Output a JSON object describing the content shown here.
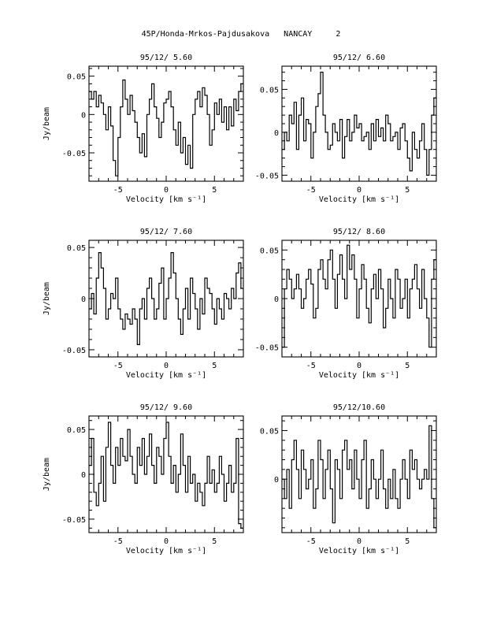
{
  "page_title": "45P/Honda-Mrkos-Pajdusakova   NANCAY     2",
  "chart_data": [
    {
      "type": "line",
      "title": "95/12/ 5.60",
      "xlabel": "Velocity [km s⁻¹]",
      "ylabel": "Jy/beam",
      "xlim": [
        -8,
        8
      ],
      "ylim": [
        -0.087,
        0.063
      ],
      "xticks": [
        -5,
        0,
        5
      ],
      "yticks": [
        0.05,
        0,
        -0.05
      ],
      "ytick_labels": [
        "0.05",
        "0",
        "-0.05"
      ],
      "x": [
        -8.0,
        -7.75,
        -7.5,
        -7.25,
        -7.0,
        -6.75,
        -6.5,
        -6.25,
        -6.0,
        -5.75,
        -5.5,
        -5.25,
        -5.0,
        -4.75,
        -4.5,
        -4.25,
        -4.0,
        -3.75,
        -3.5,
        -3.25,
        -3.0,
        -2.75,
        -2.5,
        -2.25,
        -2.0,
        -1.75,
        -1.5,
        -1.25,
        -1.0,
        -0.75,
        -0.5,
        -0.25,
        0.0,
        0.25,
        0.5,
        0.75,
        1.0,
        1.25,
        1.5,
        1.75,
        2.0,
        2.25,
        2.5,
        2.75,
        3.0,
        3.25,
        3.5,
        3.75,
        4.0,
        4.25,
        4.5,
        4.75,
        5.0,
        5.25,
        5.5,
        5.75,
        6.0,
        6.25,
        6.5,
        6.75,
        7.0,
        7.25,
        7.5,
        7.75
      ],
      "y": [
        0.03,
        0.02,
        0.03,
        0.01,
        0.025,
        0.015,
        0.0,
        -0.02,
        0.01,
        -0.015,
        -0.06,
        -0.08,
        -0.03,
        0.01,
        0.045,
        0.02,
        0.0,
        0.025,
        0.005,
        -0.01,
        -0.03,
        -0.05,
        -0.025,
        -0.055,
        0.0,
        0.02,
        0.04,
        0.01,
        -0.005,
        -0.03,
        -0.01,
        0.015,
        0.02,
        0.03,
        0.01,
        -0.02,
        -0.04,
        -0.01,
        -0.05,
        -0.03,
        -0.065,
        -0.04,
        -0.07,
        0.0,
        0.02,
        0.03,
        0.01,
        0.035,
        0.025,
        0.0,
        -0.04,
        -0.02,
        0.015,
        0.0,
        0.02,
        -0.01,
        0.01,
        -0.02,
        0.01,
        -0.015,
        0.02,
        0.005,
        0.03,
        0.04
      ]
    },
    {
      "type": "line",
      "title": "95/12/ 6.60",
      "xlabel": "Velocity [km s⁻¹]",
      "ylabel": "",
      "xlim": [
        -8,
        8
      ],
      "ylim": [
        -0.057,
        0.077
      ],
      "xticks": [
        -5,
        0,
        5
      ],
      "yticks": [
        0.05,
        0,
        -0.05
      ],
      "ytick_labels": [
        "0.05",
        "0",
        "-0.05"
      ],
      "x": [
        -8.0,
        -7.75,
        -7.5,
        -7.25,
        -7.0,
        -6.75,
        -6.5,
        -6.25,
        -6.0,
        -5.75,
        -5.5,
        -5.25,
        -5.0,
        -4.75,
        -4.5,
        -4.25,
        -4.0,
        -3.75,
        -3.5,
        -3.25,
        -3.0,
        -2.75,
        -2.5,
        -2.25,
        -2.0,
        -1.75,
        -1.5,
        -1.25,
        -1.0,
        -0.75,
        -0.5,
        -0.25,
        0.0,
        0.25,
        0.5,
        0.75,
        1.0,
        1.25,
        1.5,
        1.75,
        2.0,
        2.25,
        2.5,
        2.75,
        3.0,
        3.25,
        3.5,
        3.75,
        4.0,
        4.25,
        4.5,
        4.75,
        5.0,
        5.25,
        5.5,
        5.75,
        6.0,
        6.25,
        6.5,
        6.75,
        7.0,
        7.25,
        7.5,
        7.75
      ],
      "y": [
        -0.02,
        0.0,
        -0.01,
        0.02,
        0.01,
        0.035,
        -0.02,
        0.02,
        0.04,
        -0.01,
        0.015,
        0.01,
        -0.03,
        0.0,
        0.03,
        0.045,
        0.07,
        0.02,
        0.0,
        -0.02,
        -0.015,
        0.01,
        0.0,
        -0.01,
        0.015,
        -0.03,
        -0.005,
        0.015,
        -0.01,
        0.0,
        0.02,
        0.005,
        0.01,
        -0.01,
        -0.005,
        0.0,
        -0.02,
        0.01,
        -0.01,
        0.015,
        -0.005,
        0.005,
        -0.01,
        0.02,
        0.01,
        -0.01,
        -0.005,
        0.0,
        -0.02,
        0.005,
        0.01,
        -0.01,
        -0.03,
        -0.045,
        0.0,
        -0.02,
        -0.03,
        -0.01,
        0.01,
        -0.02,
        -0.05,
        -0.02,
        0.02,
        0.04
      ]
    },
    {
      "type": "line",
      "title": "95/12/ 7.60",
      "xlabel": "Velocity [km s⁻¹]",
      "ylabel": "Jy/beam",
      "xlim": [
        -8,
        8
      ],
      "ylim": [
        -0.057,
        0.057
      ],
      "xticks": [
        -5,
        0,
        5
      ],
      "yticks": [
        0.05,
        0,
        -0.05
      ],
      "ytick_labels": [
        "0.05",
        "0",
        "-0.05"
      ],
      "x": [
        -8.0,
        -7.75,
        -7.5,
        -7.25,
        -7.0,
        -6.75,
        -6.5,
        -6.25,
        -6.0,
        -5.75,
        -5.5,
        -5.25,
        -5.0,
        -4.75,
        -4.5,
        -4.25,
        -4.0,
        -3.75,
        -3.5,
        -3.25,
        -3.0,
        -2.75,
        -2.5,
        -2.25,
        -2.0,
        -1.75,
        -1.5,
        -1.25,
        -1.0,
        -0.75,
        -0.5,
        -0.25,
        0.0,
        0.25,
        0.5,
        0.75,
        1.0,
        1.25,
        1.5,
        1.75,
        2.0,
        2.25,
        2.5,
        2.75,
        3.0,
        3.25,
        3.5,
        3.75,
        4.0,
        4.25,
        4.5,
        4.75,
        5.0,
        5.25,
        5.5,
        5.75,
        6.0,
        6.25,
        6.5,
        6.75,
        7.0,
        7.25,
        7.5,
        7.75
      ],
      "y": [
        -0.01,
        0.005,
        -0.015,
        0.02,
        0.045,
        0.03,
        0.01,
        -0.02,
        -0.01,
        0.005,
        0.0,
        0.02,
        -0.01,
        -0.02,
        -0.03,
        -0.015,
        -0.02,
        -0.025,
        -0.01,
        -0.02,
        -0.045,
        -0.01,
        0.0,
        -0.02,
        0.01,
        0.02,
        0.0,
        -0.02,
        -0.01,
        0.015,
        0.03,
        -0.02,
        0.0,
        0.02,
        0.045,
        0.025,
        0.0,
        -0.02,
        -0.035,
        -0.01,
        0.01,
        -0.02,
        0.02,
        0.005,
        -0.01,
        -0.03,
        0.0,
        -0.015,
        0.02,
        0.01,
        0.005,
        -0.01,
        -0.025,
        0.0,
        -0.01,
        -0.02,
        0.005,
        0.0,
        -0.01,
        0.01,
        0.0,
        0.025,
        0.035,
        0.01
      ]
    },
    {
      "type": "line",
      "title": "95/12/ 8.60",
      "xlabel": "Velocity [km s⁻¹]",
      "ylabel": "",
      "xlim": [
        -8,
        8
      ],
      "ylim": [
        -0.06,
        0.06
      ],
      "xticks": [
        -5,
        0,
        5
      ],
      "yticks": [
        0.05,
        0,
        -0.05
      ],
      "ytick_labels": [
        "0.05",
        "0",
        "-0.05"
      ],
      "x": [
        -8.0,
        -7.75,
        -7.5,
        -7.25,
        -7.0,
        -6.75,
        -6.5,
        -6.25,
        -6.0,
        -5.75,
        -5.5,
        -5.25,
        -5.0,
        -4.75,
        -4.5,
        -4.25,
        -4.0,
        -3.75,
        -3.5,
        -3.25,
        -3.0,
        -2.75,
        -2.5,
        -2.25,
        -2.0,
        -1.75,
        -1.5,
        -1.25,
        -1.0,
        -0.75,
        -0.5,
        -0.25,
        0.0,
        0.25,
        0.5,
        0.75,
        1.0,
        1.25,
        1.5,
        1.75,
        2.0,
        2.25,
        2.5,
        2.75,
        3.0,
        3.25,
        3.5,
        3.75,
        4.0,
        4.25,
        4.5,
        4.75,
        5.0,
        5.25,
        5.5,
        5.75,
        6.0,
        6.25,
        6.5,
        6.75,
        7.0,
        7.25,
        7.5,
        7.75
      ],
      "y": [
        -0.05,
        0.01,
        0.03,
        0.02,
        0.0,
        0.01,
        0.025,
        0.01,
        -0.01,
        0.0,
        0.02,
        0.03,
        0.015,
        -0.02,
        -0.01,
        0.03,
        0.04,
        0.02,
        0.01,
        0.04,
        0.05,
        0.02,
        -0.01,
        0.025,
        0.045,
        0.02,
        0.0,
        0.055,
        0.03,
        0.045,
        0.02,
        -0.02,
        0.01,
        0.035,
        0.02,
        -0.01,
        -0.025,
        0.01,
        0.025,
        0.0,
        0.03,
        0.01,
        -0.03,
        -0.01,
        0.02,
        0.0,
        -0.02,
        0.03,
        0.02,
        -0.01,
        0.0,
        0.02,
        -0.02,
        0.01,
        0.02,
        0.035,
        0.01,
        -0.01,
        0.03,
        0.0,
        -0.02,
        -0.05,
        0.02,
        0.04
      ]
    },
    {
      "type": "line",
      "title": "95/12/ 9.60",
      "xlabel": "Velocity [km s⁻¹]",
      "ylabel": "Jy/beam",
      "xlim": [
        -8,
        8
      ],
      "ylim": [
        -0.065,
        0.065
      ],
      "xticks": [
        -5,
        0,
        5
      ],
      "yticks": [
        0.05,
        0,
        -0.05
      ],
      "ytick_labels": [
        "0.05",
        "0",
        "-0.05"
      ],
      "x": [
        -8.0,
        -7.75,
        -7.5,
        -7.25,
        -7.0,
        -6.75,
        -6.5,
        -6.25,
        -6.0,
        -5.75,
        -5.5,
        -5.25,
        -5.0,
        -4.75,
        -4.5,
        -4.25,
        -4.0,
        -3.75,
        -3.5,
        -3.25,
        -3.0,
        -2.75,
        -2.5,
        -2.25,
        -2.0,
        -1.75,
        -1.5,
        -1.25,
        -1.0,
        -0.75,
        -0.5,
        -0.25,
        0.0,
        0.25,
        0.5,
        0.75,
        1.0,
        1.25,
        1.5,
        1.75,
        2.0,
        2.25,
        2.5,
        2.75,
        3.0,
        3.25,
        3.5,
        3.75,
        4.0,
        4.25,
        4.5,
        4.75,
        5.0,
        5.25,
        5.5,
        5.75,
        6.0,
        6.25,
        6.5,
        6.75,
        7.0,
        7.25,
        7.5,
        7.75
      ],
      "y": [
        0.01,
        0.04,
        -0.02,
        -0.035,
        -0.01,
        0.02,
        -0.03,
        0.03,
        0.058,
        0.01,
        -0.01,
        0.03,
        0.01,
        0.04,
        0.02,
        0.015,
        0.05,
        0.02,
        0.0,
        -0.01,
        0.03,
        0.01,
        0.04,
        0.0,
        0.02,
        0.045,
        0.01,
        -0.01,
        0.03,
        0.02,
        0.0,
        0.04,
        0.058,
        0.02,
        -0.01,
        0.01,
        -0.02,
        0.0,
        0.045,
        0.01,
        -0.02,
        0.02,
        -0.01,
        0.0,
        -0.03,
        -0.01,
        -0.02,
        -0.035,
        -0.01,
        0.02,
        -0.01,
        0.005,
        -0.02,
        -0.01,
        0.02,
        0.0,
        -0.03,
        -0.01,
        0.01,
        -0.02,
        -0.01,
        0.04,
        -0.055,
        -0.06
      ]
    },
    {
      "type": "line",
      "title": "95/12/10.60",
      "xlabel": "Velocity [km s⁻¹]",
      "ylabel": "",
      "xlim": [
        -8,
        8
      ],
      "ylim": [
        -0.055,
        0.065
      ],
      "xticks": [
        -5,
        0,
        5
      ],
      "yticks": [
        0.05,
        0
      ],
      "ytick_labels": [
        "0.05",
        "0"
      ],
      "x": [
        -8.0,
        -7.75,
        -7.5,
        -7.25,
        -7.0,
        -6.75,
        -6.5,
        -6.25,
        -6.0,
        -5.75,
        -5.5,
        -5.25,
        -5.0,
        -4.75,
        -4.5,
        -4.25,
        -4.0,
        -3.75,
        -3.5,
        -3.25,
        -3.0,
        -2.75,
        -2.5,
        -2.25,
        -2.0,
        -1.75,
        -1.5,
        -1.25,
        -1.0,
        -0.75,
        -0.5,
        -0.25,
        0.0,
        0.25,
        0.5,
        0.75,
        1.0,
        1.25,
        1.5,
        1.75,
        2.0,
        2.25,
        2.5,
        2.75,
        3.0,
        3.25,
        3.5,
        3.75,
        4.0,
        4.25,
        4.5,
        4.75,
        5.0,
        5.25,
        5.5,
        5.75,
        6.0,
        6.25,
        6.5,
        6.75,
        7.0,
        7.25,
        7.5,
        7.75
      ],
      "y": [
        0.0,
        -0.02,
        0.01,
        -0.03,
        0.02,
        0.04,
        0.01,
        -0.02,
        0.03,
        0.01,
        -0.01,
        0.0,
        0.02,
        -0.03,
        -0.01,
        0.04,
        0.02,
        -0.02,
        0.01,
        0.03,
        -0.01,
        -0.045,
        0.02,
        0.01,
        -0.02,
        0.03,
        0.04,
        0.01,
        0.02,
        -0.01,
        0.03,
        0.0,
        -0.02,
        0.02,
        0.04,
        -0.03,
        -0.01,
        0.02,
        0.0,
        -0.02,
        0.0,
        0.03,
        -0.01,
        -0.03,
        0.0,
        -0.02,
        0.01,
        -0.02,
        -0.03,
        0.0,
        0.02,
        0.0,
        -0.02,
        0.03,
        0.01,
        0.02,
        0.0,
        -0.01,
        0.0,
        0.01,
        0.0,
        0.055,
        -0.02,
        -0.05
      ]
    }
  ]
}
